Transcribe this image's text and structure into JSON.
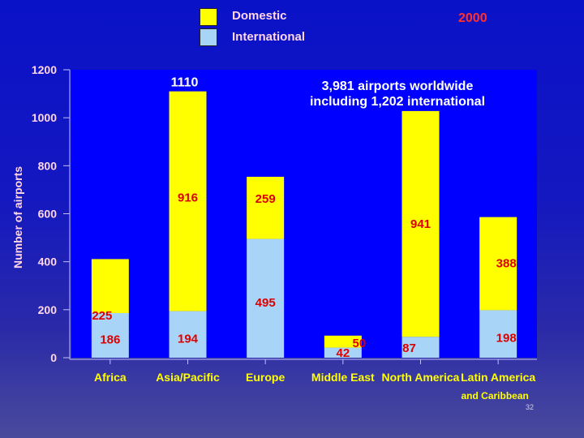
{
  "legend": [
    {
      "label": "Domestic",
      "color": "#ffff00"
    },
    {
      "label": "International",
      "color": "#a8d4f8"
    }
  ],
  "year_label": "2000",
  "annotation_lines": [
    "3,981 airports worldwide",
    "including 1,202 international"
  ],
  "page_number": "32",
  "chart_data": {
    "type": "bar",
    "stacked": true,
    "categories": [
      "Africa",
      "Asia/Pacific",
      "Europe",
      "Middle East",
      "North America",
      "Latin America"
    ],
    "category_sublabels": [
      "",
      "",
      "",
      "",
      "",
      "and Caribbean"
    ],
    "series": [
      {
        "name": "International",
        "color": "#a8d4f8",
        "values": [
          186,
          194,
          495,
          42,
          87,
          198
        ]
      },
      {
        "name": "Domestic",
        "color": "#ffff00",
        "values": [
          225,
          916,
          259,
          50,
          941,
          388
        ]
      }
    ],
    "totals": [
      null,
      1110,
      null,
      null,
      null,
      null
    ],
    "ylabel": "Number of airports",
    "xlabel": "",
    "ylim": [
      0,
      1200
    ],
    "yticks": [
      0,
      200,
      400,
      600,
      800,
      1000,
      1200
    ],
    "grid": false,
    "colors": {
      "plot_bg": "#0000ff",
      "tick_label": "#ffd6e8",
      "value_label": "#dd0000",
      "category_label": "#ffff00"
    }
  }
}
